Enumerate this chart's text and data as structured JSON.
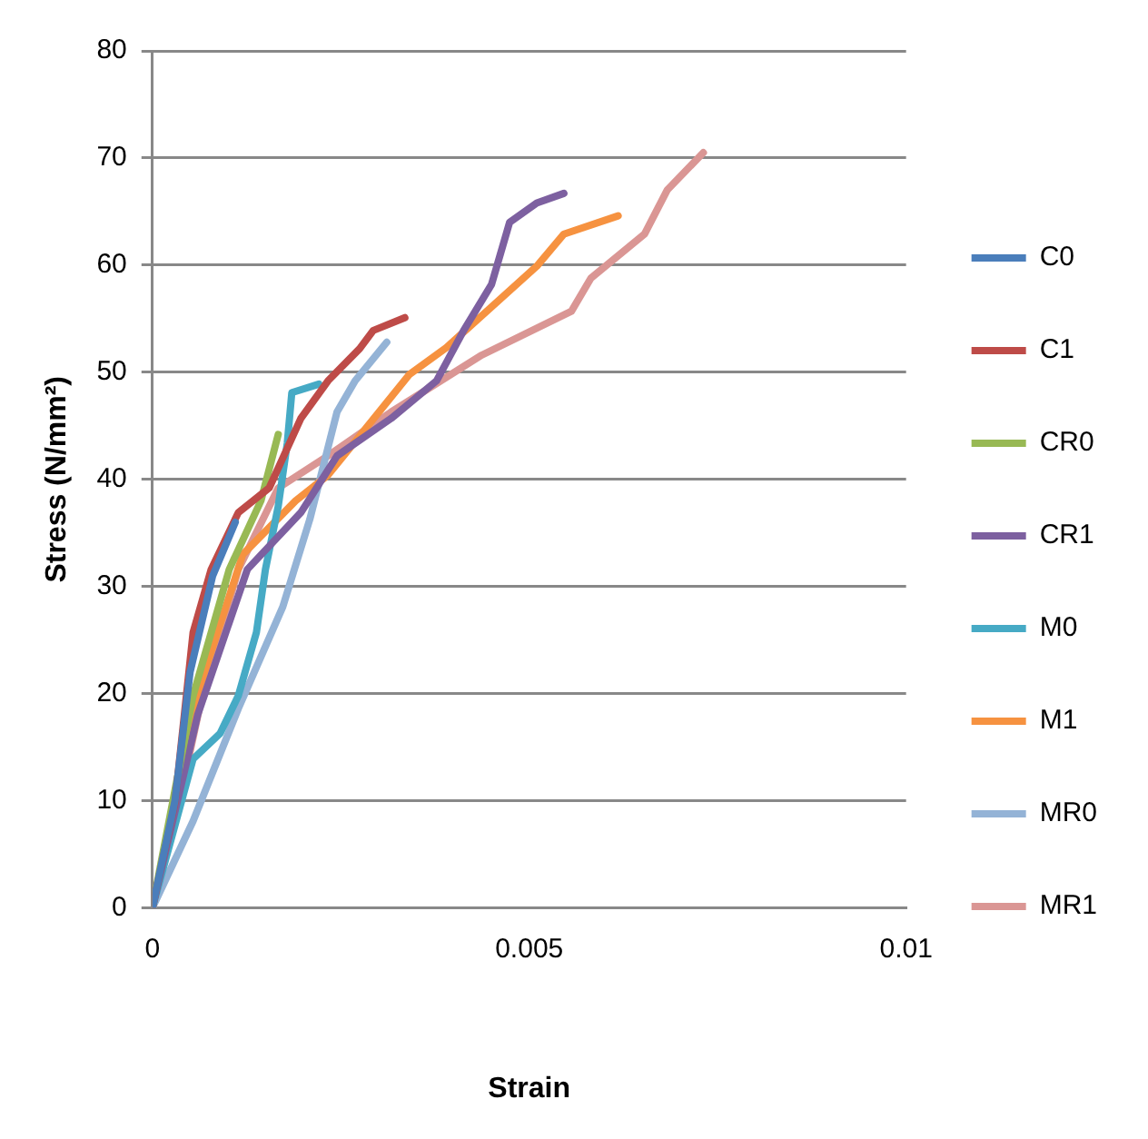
{
  "chart_data": {
    "type": "line",
    "xlabel": "Strain",
    "ylabel": "Stress (N/mm²)",
    "xlim": [
      0,
      0.01
    ],
    "xticks": [
      0,
      0.005,
      0.01
    ],
    "ylim": [
      0,
      80
    ],
    "yticks": [
      0,
      10,
      20,
      30,
      40,
      50,
      60,
      70,
      80
    ],
    "grid": "y",
    "legend": "right",
    "marker": "none",
    "line_style": "solid",
    "series": [
      {
        "name": "C0",
        "color": "#4a7ebb",
        "x": [
          0,
          0.0003,
          0.0005,
          0.0008,
          0.0011
        ],
        "values": [
          0,
          10,
          22,
          31,
          36
        ]
      },
      {
        "name": "C1",
        "color": "#be4b48",
        "x": [
          0,
          0.0003,
          0.00054,
          0.00078,
          0.00114,
          0.00155,
          0.00197,
          0.00233,
          0.00275,
          0.00293,
          0.00335
        ],
        "values": [
          0,
          9.8,
          25.7,
          31.6,
          36.9,
          39.2,
          45.7,
          49.2,
          52.2,
          53.9,
          55.1
        ]
      },
      {
        "name": "CR0",
        "color": "#98b954",
        "x": [
          0,
          0.00054,
          0.00102,
          0.00144,
          0.00167
        ],
        "values": [
          0,
          19.8,
          31.6,
          38,
          44.2
        ]
      },
      {
        "name": "CR1",
        "color": "#7d60a0",
        "x": [
          0,
          0.0006,
          0.00126,
          0.00197,
          0.00245,
          0.00317,
          0.00377,
          0.00413,
          0.0045,
          0.00474,
          0.0051,
          0.00546
        ],
        "values": [
          0,
          18,
          31.6,
          36.9,
          42.2,
          45.7,
          49.2,
          53.9,
          58.2,
          64,
          65.8,
          66.7
        ]
      },
      {
        "name": "M0",
        "color": "#46aac5",
        "x": [
          0,
          0.00054,
          0.0009,
          0.00114,
          0.00138,
          0.0015,
          0.00167,
          0.00179,
          0.00185,
          0.00221
        ],
        "values": [
          0,
          13.9,
          16.3,
          19.8,
          25.7,
          31.6,
          37.5,
          43.4,
          48.1,
          48.9
        ]
      },
      {
        "name": "M1",
        "color": "#f69240",
        "x": [
          0,
          0.0006,
          0.0012,
          0.0019,
          0.00233,
          0.00341,
          0.0039,
          0.0051,
          0.00546,
          0.00618
        ],
        "values": [
          0,
          20,
          33,
          38,
          40.4,
          49.8,
          52.3,
          59.9,
          62.9,
          64.6
        ]
      },
      {
        "name": "MR0",
        "color": "#94b3d6",
        "x": [
          0,
          0.00054,
          0.00114,
          0.00173,
          0.00209,
          0.00245,
          0.00269,
          0.00311
        ],
        "values": [
          0,
          8.1,
          18.6,
          28.1,
          36.3,
          46.3,
          49.2,
          52.8
        ]
      },
      {
        "name": "MR1",
        "color": "#da9694",
        "x": [
          0,
          0.0003,
          0.00066,
          0.00114,
          0.00167,
          0.00233,
          0.00317,
          0.00437,
          0.00556,
          0.00582,
          0.00653,
          0.00683,
          0.00731
        ],
        "values": [
          0,
          8.1,
          19.8,
          31.6,
          39.2,
          42.2,
          46.3,
          51.6,
          55.7,
          58.8,
          62.9,
          67,
          70.5
        ]
      }
    ]
  }
}
